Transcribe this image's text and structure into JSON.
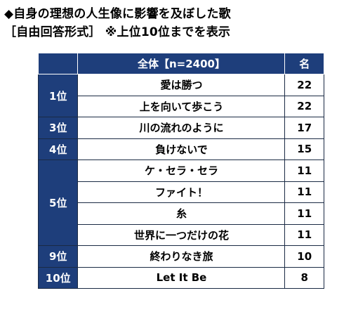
{
  "title": "◆自身の理想の人生像に影響を及ぼした歌",
  "subtitle": "［自由回答形式］ ※上位10位までを表示",
  "table": {
    "header_song": "全体【n=2400】",
    "header_count": "名",
    "groups": [
      {
        "rank": "1位",
        "rows": [
          {
            "song": "愛は勝つ",
            "count": "22"
          },
          {
            "song": "上を向いて歩こう",
            "count": "22"
          }
        ]
      },
      {
        "rank": "3位",
        "rows": [
          {
            "song": "川の流れのように",
            "count": "17"
          }
        ]
      },
      {
        "rank": "4位",
        "rows": [
          {
            "song": "負けないで",
            "count": "15"
          }
        ]
      },
      {
        "rank": "5位",
        "rows": [
          {
            "song": "ケ・セラ・セラ",
            "count": "11"
          },
          {
            "song": "ファイト！",
            "count": "11"
          },
          {
            "song": "糸",
            "count": "11"
          },
          {
            "song": "世界に一つだけの花",
            "count": "11"
          }
        ]
      },
      {
        "rank": "9位",
        "rows": [
          {
            "song": "終わりなき旅",
            "count": "10"
          }
        ]
      },
      {
        "rank": "10位",
        "rows": [
          {
            "song": "Let It Be",
            "count": "8"
          }
        ]
      }
    ]
  },
  "colors": {
    "header_bg": "#1e3e7b",
    "header_text": "#ffffff",
    "border": "#1a2a44"
  }
}
